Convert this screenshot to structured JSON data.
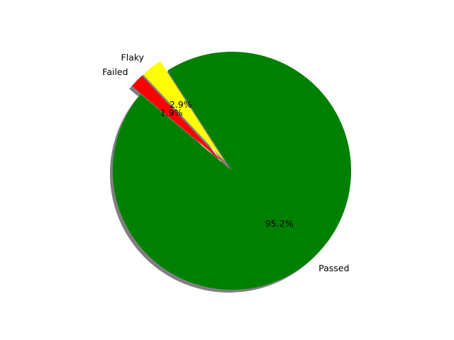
{
  "chart_data": {
    "type": "pie",
    "start_angle_deg": 140,
    "direction": "counterclockwise",
    "shadow": true,
    "slices": [
      {
        "label": "Passed",
        "value": 95.2,
        "pct_label": "95.2%",
        "color": "#008000",
        "explode": 0
      },
      {
        "label": "Flaky",
        "value": 2.9,
        "pct_label": "2.9%",
        "color": "#ffff00",
        "explode": 0.1
      },
      {
        "label": "Failed",
        "value": 1.9,
        "pct_label": "1.9%",
        "color": "#ff0000",
        "explode": 0.1
      }
    ]
  }
}
